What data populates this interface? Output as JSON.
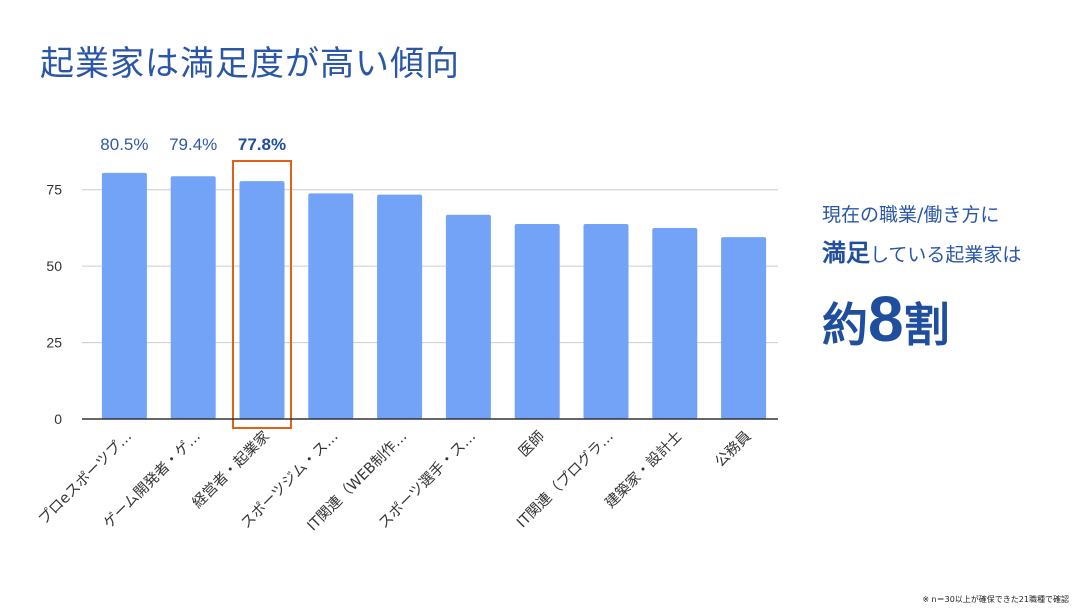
{
  "title": "起業家は満足度が高い傾向",
  "callout": {
    "line1": "現在の職業/働き方に",
    "line2_strong": "満足",
    "line2_rest": "している起業家は",
    "big_prefix": "約",
    "big_number": "8",
    "big_suffix": "割"
  },
  "footnote": "※ n＝30以上が確保できた21職種で確認",
  "colors": {
    "bar": "#73a3f7",
    "highlight_box": "#e0601a",
    "axis": "#333333",
    "grid": "#cccccc"
  },
  "chart_data": {
    "type": "bar",
    "categories": [
      "プロeスポーツプ…",
      "ゲーム開発者・ゲ…",
      "経営者・起業家",
      "スポーツジム・ス…",
      "IT関連（WEB制作…",
      "スポーツ選手・ス…",
      "医師",
      "IT関連（プログラ…",
      "建築家・設計士",
      "公務員"
    ],
    "values": [
      80.5,
      79.4,
      77.8,
      73.8,
      73.4,
      66.8,
      63.8,
      63.8,
      62.5,
      59.5
    ],
    "data_labels": [
      "80.5%",
      "79.4%",
      "77.8%",
      "",
      "",
      "",
      "",
      "",
      "",
      ""
    ],
    "highlight_index": 2,
    "y_ticks": [
      0,
      25,
      50,
      75
    ],
    "ylim": [
      0,
      88
    ],
    "grid": true,
    "legend": "none"
  }
}
